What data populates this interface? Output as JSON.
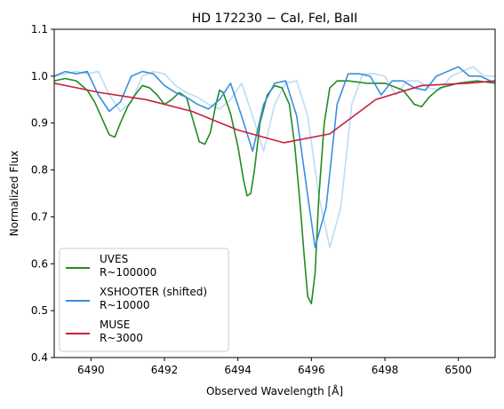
{
  "chart_data": {
    "type": "line",
    "title": "HD 172230 − CaI, FeI, BaII",
    "xlabel": "Observed Wavelength [$\\AA$]",
    "xlabel_display": "Observed Wavelength [Å]",
    "ylabel": "Normalized Flux",
    "xlim": [
      6489.0,
      6501.0
    ],
    "ylim": [
      0.4,
      1.1
    ],
    "xticks": [
      6490,
      6492,
      6494,
      6496,
      6498,
      6500
    ],
    "yticks": [
      0.4,
      0.5,
      0.6,
      0.7,
      0.8,
      0.9,
      1.0,
      1.1
    ],
    "xtick_labels": [
      "6490",
      "6492",
      "6494",
      "6496",
      "6498",
      "6500"
    ],
    "ytick_labels": [
      "0.4",
      "0.5",
      "0.6",
      "0.7",
      "0.8",
      "0.9",
      "1.0",
      "1.1"
    ],
    "grid": false,
    "legend_position": "lower-left",
    "series": [
      {
        "name": "UVES\nR~100000",
        "color": "#228b22",
        "x": [
          6489.0,
          6489.3,
          6489.6,
          6489.9,
          6490.1,
          6490.3,
          6490.5,
          6490.65,
          6490.8,
          6491.0,
          6491.2,
          6491.4,
          6491.6,
          6491.8,
          6492.0,
          6492.2,
          6492.4,
          6492.6,
          6492.8,
          6492.95,
          6493.1,
          6493.25,
          6493.4,
          6493.5,
          6493.6,
          6493.8,
          6494.0,
          6494.15,
          6494.25,
          6494.35,
          6494.45,
          6494.6,
          6494.8,
          6495.0,
          6495.2,
          6495.4,
          6495.55,
          6495.7,
          6495.8,
          6495.9,
          6496.0,
          6496.1,
          6496.2,
          6496.35,
          6496.5,
          6496.7,
          6497.0,
          6497.5,
          6498.0,
          6498.5,
          6498.8,
          6499.0,
          6499.2,
          6499.5,
          6500.0,
          6500.5,
          6501.0
        ],
        "y": [
          0.99,
          0.995,
          0.99,
          0.97,
          0.945,
          0.91,
          0.875,
          0.87,
          0.9,
          0.935,
          0.96,
          0.98,
          0.975,
          0.96,
          0.94,
          0.95,
          0.965,
          0.955,
          0.9,
          0.86,
          0.855,
          0.88,
          0.94,
          0.97,
          0.965,
          0.92,
          0.85,
          0.78,
          0.745,
          0.75,
          0.8,
          0.9,
          0.96,
          0.98,
          0.975,
          0.94,
          0.85,
          0.72,
          0.62,
          0.53,
          0.515,
          0.58,
          0.74,
          0.9,
          0.975,
          0.99,
          0.99,
          0.985,
          0.985,
          0.97,
          0.94,
          0.935,
          0.955,
          0.975,
          0.985,
          0.99,
          0.985
        ]
      },
      {
        "name": "XSHOOTER (shifted)\nR~10000",
        "color": "#3a8fdc",
        "x": [
          6489.0,
          6489.3,
          6489.6,
          6489.9,
          6490.2,
          6490.5,
          6490.8,
          6491.1,
          6491.4,
          6491.7,
          6492.0,
          6492.3,
          6492.6,
          6492.9,
          6493.2,
          6493.5,
          6493.8,
          6494.1,
          6494.4,
          6494.7,
          6495.0,
          6495.3,
          6495.6,
          6495.9,
          6496.1,
          6496.4,
          6496.7,
          6497.0,
          6497.3,
          6497.6,
          6497.9,
          6498.2,
          6498.5,
          6498.8,
          6499.1,
          6499.4,
          6499.7,
          6500.0,
          6500.3,
          6500.6,
          6501.0
        ],
        "y": [
          1.0,
          1.01,
          1.005,
          1.01,
          0.96,
          0.925,
          0.945,
          1.0,
          1.01,
          1.005,
          0.98,
          0.965,
          0.955,
          0.94,
          0.93,
          0.95,
          0.985,
          0.915,
          0.84,
          0.94,
          0.985,
          0.99,
          0.915,
          0.745,
          0.635,
          0.72,
          0.94,
          1.005,
          1.005,
          1.0,
          0.96,
          0.99,
          0.99,
          0.975,
          0.97,
          1.0,
          1.01,
          1.02,
          1.0,
          1.0,
          0.985
        ]
      },
      {
        "name": "XSHOOTER (unshifted)",
        "legend": false,
        "color": "#bcdcf5",
        "x": [
          6489.0,
          6489.3,
          6489.6,
          6489.9,
          6490.2,
          6490.5,
          6490.8,
          6491.1,
          6491.4,
          6491.7,
          6492.0,
          6492.3,
          6492.6,
          6492.9,
          6493.2,
          6493.5,
          6493.8,
          6494.1,
          6494.4,
          6494.7,
          6495.0,
          6495.3,
          6495.6,
          6495.9,
          6496.2,
          6496.5,
          6496.8,
          6497.1,
          6497.4,
          6497.7,
          6498.0,
          6498.3,
          6498.6,
          6498.9,
          6499.2,
          6499.5,
          6499.8,
          6500.1,
          6500.4,
          6500.7,
          6501.0
        ],
        "y": [
          1.0,
          1.005,
          1.01,
          1.005,
          1.01,
          0.96,
          0.925,
          0.945,
          1.0,
          1.01,
          1.005,
          0.98,
          0.965,
          0.955,
          0.94,
          0.93,
          0.95,
          0.985,
          0.915,
          0.84,
          0.94,
          0.985,
          0.99,
          0.915,
          0.745,
          0.635,
          0.72,
          0.94,
          1.005,
          1.005,
          1.0,
          0.96,
          0.99,
          0.99,
          0.975,
          0.97,
          1.0,
          1.01,
          1.02,
          1.0,
          1.0
        ]
      },
      {
        "name": "MUSE\nR~3000",
        "color": "#c8203f",
        "x": [
          6489.0,
          6490.25,
          6491.5,
          6492.75,
          6494.0,
          6495.25,
          6496.5,
          6497.75,
          6499.0,
          6500.25,
          6501.0
        ],
        "y": [
          0.985,
          0.965,
          0.95,
          0.925,
          0.885,
          0.858,
          0.877,
          0.95,
          0.98,
          0.985,
          0.99
        ]
      }
    ]
  }
}
